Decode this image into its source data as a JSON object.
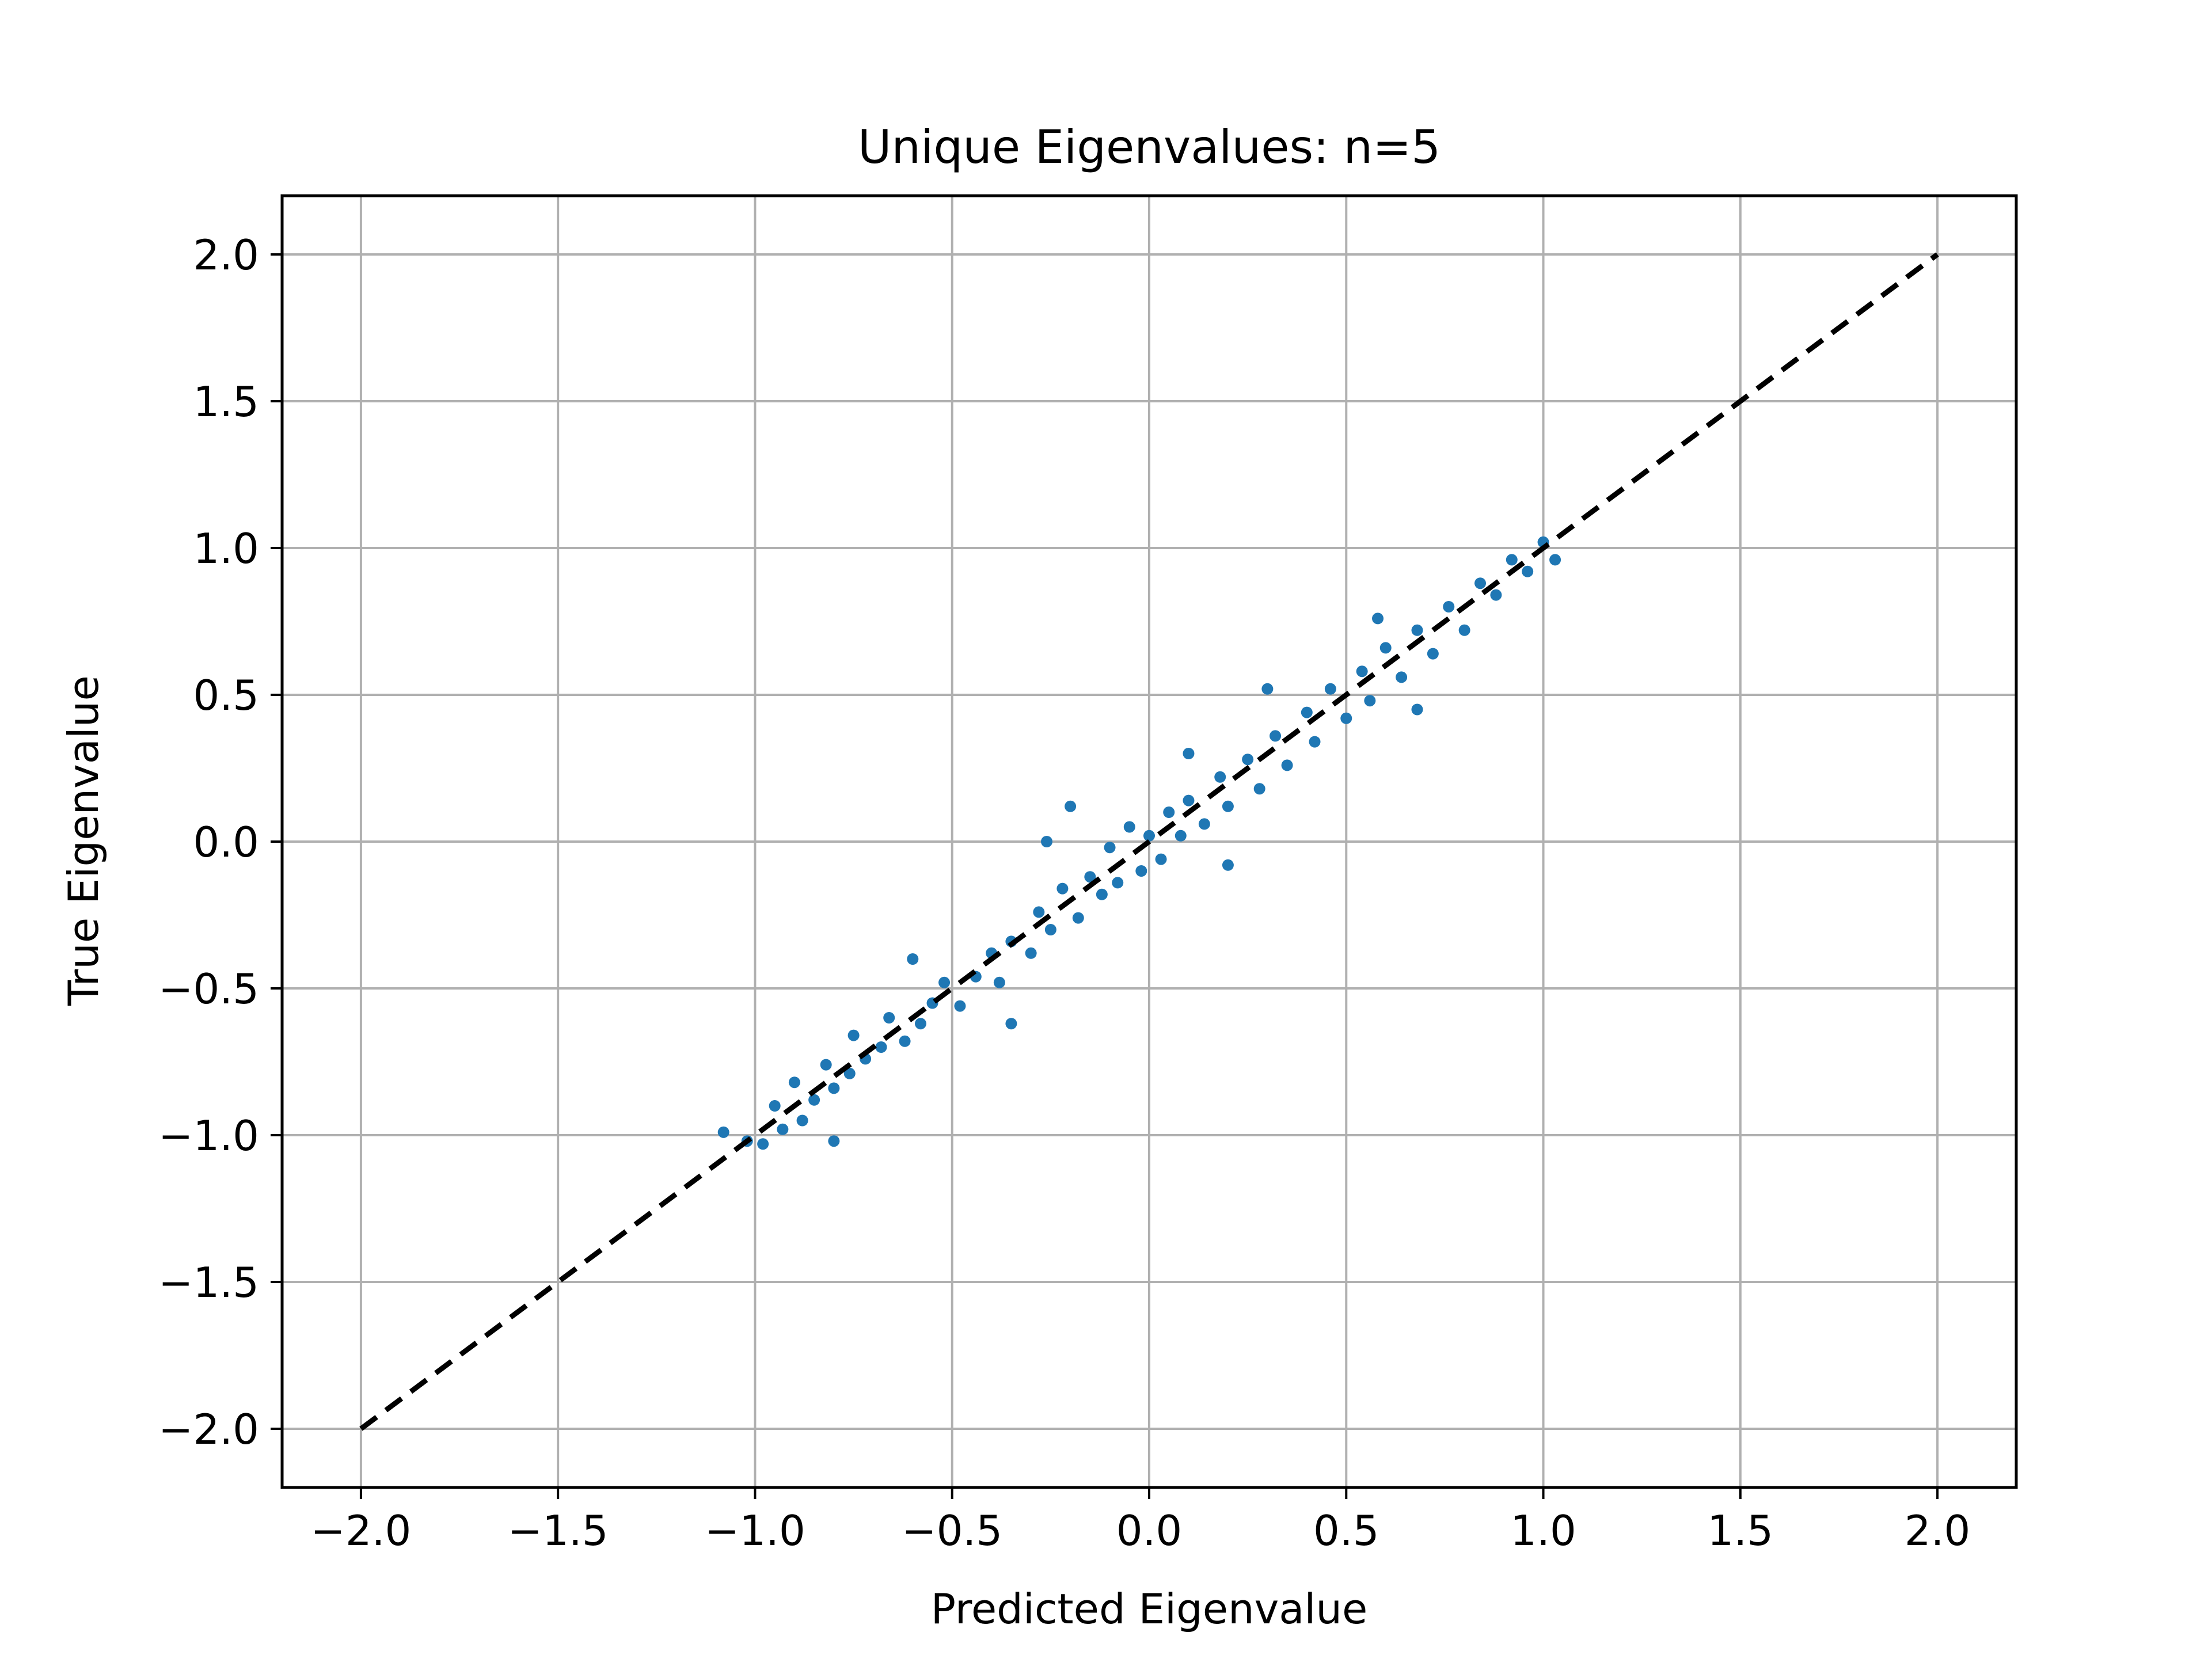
{
  "chart_data": {
    "type": "scatter",
    "title": "Unique Eigenvalues: n=5",
    "xlabel": "Predicted Eigenvalue",
    "ylabel": "True Eigenvalue",
    "xlim": [
      -2.2,
      2.2
    ],
    "ylim": [
      -2.2,
      2.2
    ],
    "x_ticks": [
      -2.0,
      -1.5,
      -1.0,
      -0.5,
      0.0,
      0.5,
      1.0,
      1.5,
      2.0
    ],
    "y_ticks": [
      -2.0,
      -1.5,
      -1.0,
      -0.5,
      0.0,
      0.5,
      1.0,
      1.5,
      2.0
    ],
    "x_tick_labels": [
      "−2.0",
      "−1.5",
      "−1.0",
      "−0.5",
      "0.0",
      "0.5",
      "1.0",
      "1.5",
      "2.0"
    ],
    "y_tick_labels": [
      "−2.0",
      "−1.5",
      "−1.0",
      "−0.5",
      "0.0",
      "0.5",
      "1.0",
      "1.5",
      "2.0"
    ],
    "grid": true,
    "legend": false,
    "series": [
      {
        "color": "#1f77b4",
        "points": [
          [
            -1.02,
            -1.02
          ],
          [
            -0.98,
            -1.03
          ],
          [
            -1.08,
            -0.99
          ],
          [
            -0.93,
            -0.98
          ],
          [
            -0.95,
            -0.9
          ],
          [
            -0.88,
            -0.95
          ],
          [
            -0.9,
            -0.82
          ],
          [
            -0.85,
            -0.88
          ],
          [
            -0.8,
            -0.84
          ],
          [
            -0.82,
            -0.76
          ],
          [
            -0.76,
            -0.79
          ],
          [
            -0.72,
            -0.74
          ],
          [
            -0.75,
            -0.66
          ],
          [
            -0.68,
            -0.7
          ],
          [
            -0.66,
            -0.6
          ],
          [
            -0.62,
            -0.68
          ],
          [
            -0.58,
            -0.62
          ],
          [
            -0.55,
            -0.55
          ],
          [
            -0.52,
            -0.48
          ],
          [
            -0.48,
            -0.56
          ],
          [
            -0.44,
            -0.46
          ],
          [
            -0.4,
            -0.38
          ],
          [
            -0.38,
            -0.48
          ],
          [
            -0.35,
            -0.34
          ],
          [
            -0.3,
            -0.38
          ],
          [
            -0.28,
            -0.24
          ],
          [
            -0.25,
            -0.3
          ],
          [
            -0.22,
            -0.16
          ],
          [
            -0.18,
            -0.26
          ],
          [
            -0.15,
            -0.12
          ],
          [
            -0.12,
            -0.18
          ],
          [
            -0.1,
            -0.02
          ],
          [
            -0.08,
            -0.14
          ],
          [
            -0.05,
            0.05
          ],
          [
            -0.02,
            -0.1
          ],
          [
            0.0,
            0.02
          ],
          [
            0.03,
            -0.06
          ],
          [
            0.05,
            0.1
          ],
          [
            0.08,
            0.02
          ],
          [
            0.1,
            0.14
          ],
          [
            0.14,
            0.06
          ],
          [
            0.18,
            0.22
          ],
          [
            0.2,
            0.12
          ],
          [
            0.25,
            0.28
          ],
          [
            0.28,
            0.18
          ],
          [
            0.32,
            0.36
          ],
          [
            0.35,
            0.26
          ],
          [
            0.4,
            0.44
          ],
          [
            0.42,
            0.34
          ],
          [
            0.46,
            0.52
          ],
          [
            0.5,
            0.42
          ],
          [
            0.54,
            0.58
          ],
          [
            0.56,
            0.48
          ],
          [
            0.6,
            0.66
          ],
          [
            0.64,
            0.56
          ],
          [
            0.68,
            0.72
          ],
          [
            0.72,
            0.64
          ],
          [
            0.76,
            0.8
          ],
          [
            0.8,
            0.72
          ],
          [
            0.84,
            0.88
          ],
          [
            0.88,
            0.84
          ],
          [
            0.92,
            0.96
          ],
          [
            0.96,
            0.92
          ],
          [
            1.0,
            1.02
          ],
          [
            1.03,
            0.96
          ],
          [
            -0.6,
            -0.4
          ],
          [
            -0.2,
            0.12
          ],
          [
            0.3,
            0.52
          ],
          [
            -0.35,
            -0.62
          ],
          [
            0.2,
            -0.08
          ],
          [
            0.68,
            0.45
          ],
          [
            -0.8,
            -1.02
          ],
          [
            0.1,
            0.3
          ],
          [
            0.58,
            0.76
          ],
          [
            -0.26,
            0.0
          ]
        ]
      }
    ],
    "reference_line": {
      "x": [
        -2.0,
        2.0
      ],
      "y": [
        -2.0,
        2.0
      ],
      "color": "#000000",
      "style": "dashed"
    }
  }
}
